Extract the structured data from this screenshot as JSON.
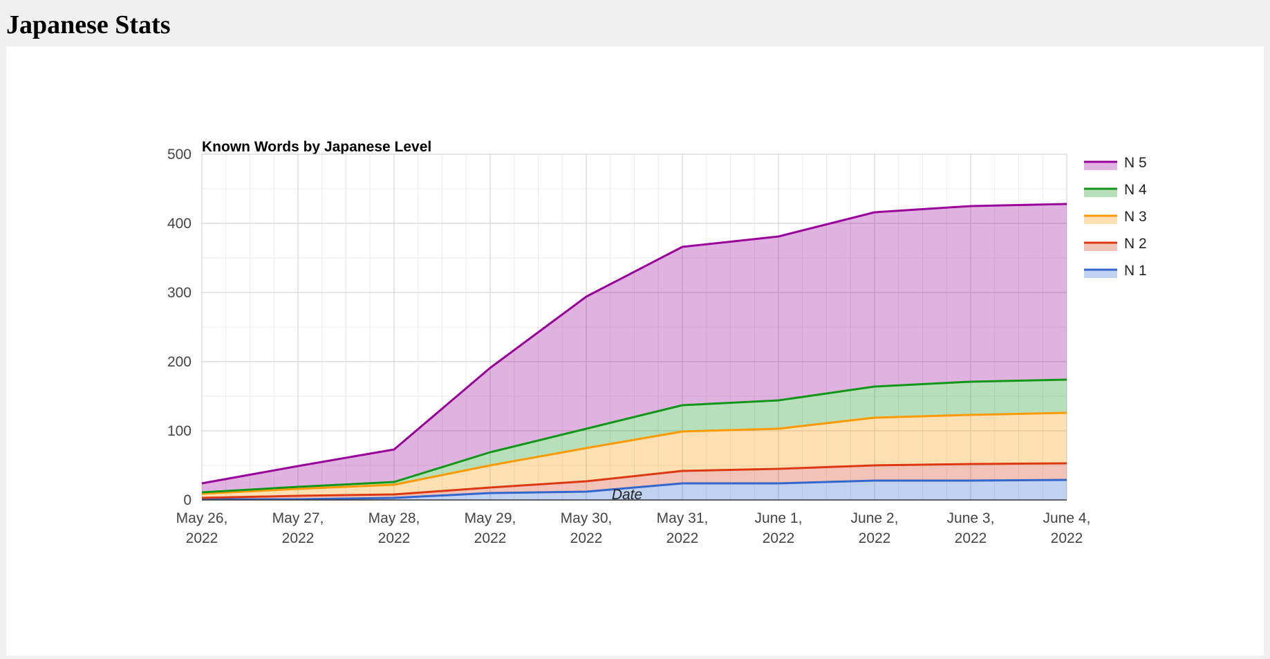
{
  "page": {
    "heading": "Japanese Stats"
  },
  "chart_data": {
    "type": "area",
    "stacked": true,
    "title": "Known Words by Japanese Level",
    "xlabel": "Date",
    "ylabel": "",
    "ylim": [
      0,
      500
    ],
    "yticks": [
      0,
      100,
      200,
      300,
      400,
      500
    ],
    "grid": true,
    "legend_position": "right",
    "categories": [
      [
        "May 26,",
        "2022"
      ],
      [
        "May 27,",
        "2022"
      ],
      [
        "May 28,",
        "2022"
      ],
      [
        "May 29,",
        "2022"
      ],
      [
        "May 30,",
        "2022"
      ],
      [
        "May 31,",
        "2022"
      ],
      [
        "June 1,",
        "2022"
      ],
      [
        "June 2,",
        "2022"
      ],
      [
        "June 3,",
        "2022"
      ],
      [
        "June 4,",
        "2022"
      ]
    ],
    "series": [
      {
        "name": "N 1",
        "color": "#3366cc",
        "values": [
          1,
          1,
          3,
          10,
          12,
          24,
          24,
          28,
          28,
          29
        ]
      },
      {
        "name": "N 2",
        "color": "#dc3912",
        "values": [
          2,
          5,
          5,
          8,
          15,
          18,
          21,
          22,
          24,
          24
        ]
      },
      {
        "name": "N 3",
        "color": "#ff9900",
        "values": [
          6,
          10,
          14,
          32,
          48,
          57,
          58,
          69,
          71,
          73
        ]
      },
      {
        "name": "N 4",
        "color": "#109618",
        "values": [
          2,
          3,
          4,
          19,
          28,
          38,
          41,
          45,
          48,
          48
        ]
      },
      {
        "name": "N 5",
        "color": "#990099",
        "values": [
          13,
          30,
          47,
          122,
          191,
          229,
          237,
          252,
          254,
          254
        ]
      }
    ],
    "legend_order": [
      "N 5",
      "N 4",
      "N 3",
      "N 2",
      "N 1"
    ]
  }
}
